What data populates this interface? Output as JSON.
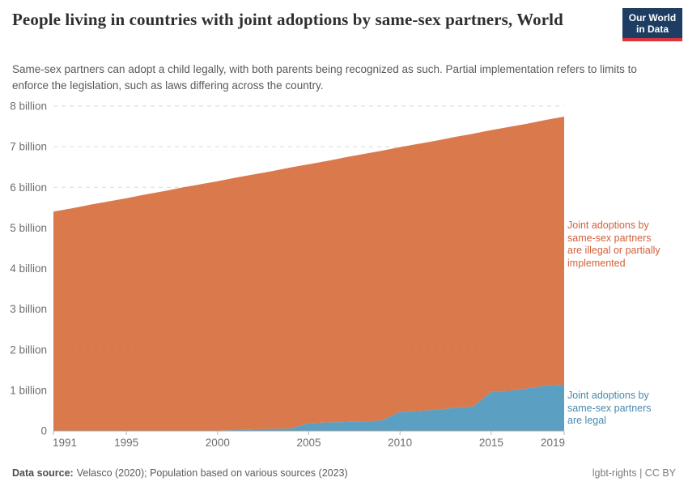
{
  "header": {
    "title": "People living in countries with joint adoptions by same-sex partners, World",
    "subtitle": "Same-sex partners can adopt a child legally, with both parents being recognized as such. Partial implementation refers to limits to enforce the legislation, such as laws differing across the country.",
    "logo": {
      "line1": "Our World",
      "line2": "in Data",
      "bg_color": "#1d3d63",
      "accent_color": "#d8353f"
    }
  },
  "chart_data": {
    "type": "area",
    "stacked": true,
    "title": "People living in countries with joint adoptions by same-sex partners, World",
    "xlabel": "",
    "ylabel": "",
    "xlim": [
      1991,
      2019
    ],
    "ylim": [
      0,
      8
    ],
    "grid": "horizontal-dashed",
    "legend_position": "right-annotations",
    "units": "billion people",
    "x": [
      1991,
      1992,
      1993,
      1994,
      1995,
      1996,
      1997,
      1998,
      1999,
      2000,
      2001,
      2002,
      2003,
      2004,
      2005,
      2006,
      2007,
      2008,
      2009,
      2010,
      2011,
      2012,
      2013,
      2014,
      2015,
      2016,
      2017,
      2018,
      2019
    ],
    "series": [
      {
        "name": "Joint adoptions by same-sex partners are legal",
        "color": "#3e8fb9",
        "label_color": "#4889ae",
        "values": [
          0,
          0,
          0,
          0,
          0,
          0,
          0,
          0,
          0,
          0.01,
          0.02,
          0.04,
          0.05,
          0.06,
          0.19,
          0.21,
          0.22,
          0.23,
          0.26,
          0.47,
          0.49,
          0.52,
          0.57,
          0.6,
          0.96,
          0.99,
          1.05,
          1.12,
          1.14
        ]
      },
      {
        "name": "Joint adoptions by same-sex partners are illegal or partially implemented",
        "color": "#d4612c",
        "label_color": "#d2603a",
        "values": [
          5.4,
          5.48,
          5.57,
          5.65,
          5.73,
          5.82,
          5.9,
          5.99,
          6.07,
          6.14,
          6.22,
          6.28,
          6.35,
          6.43,
          6.38,
          6.44,
          6.52,
          6.59,
          6.64,
          6.52,
          6.58,
          6.63,
          6.67,
          6.72,
          6.45,
          6.5,
          6.52,
          6.54,
          6.6
        ]
      }
    ],
    "y_tick_values": [
      0,
      1,
      2,
      3,
      4,
      5,
      6,
      7,
      8
    ],
    "y_tick_labels": [
      "0",
      "1 billion",
      "2 billion",
      "3 billion",
      "4 billion",
      "5 billion",
      "6 billion",
      "7 billion",
      "8 billion"
    ],
    "x_tick_values": [
      1991,
      1995,
      2000,
      2005,
      2010,
      2015,
      2019
    ],
    "x_tick_labels": [
      "1991",
      "1995",
      "2000",
      "2005",
      "2010",
      "2015",
      "2019"
    ]
  },
  "footer": {
    "source_label": "Data source:",
    "source_text": "Velasco (2020); Population based on various sources (2023)",
    "right_text": "lgbt-rights | CC BY"
  }
}
